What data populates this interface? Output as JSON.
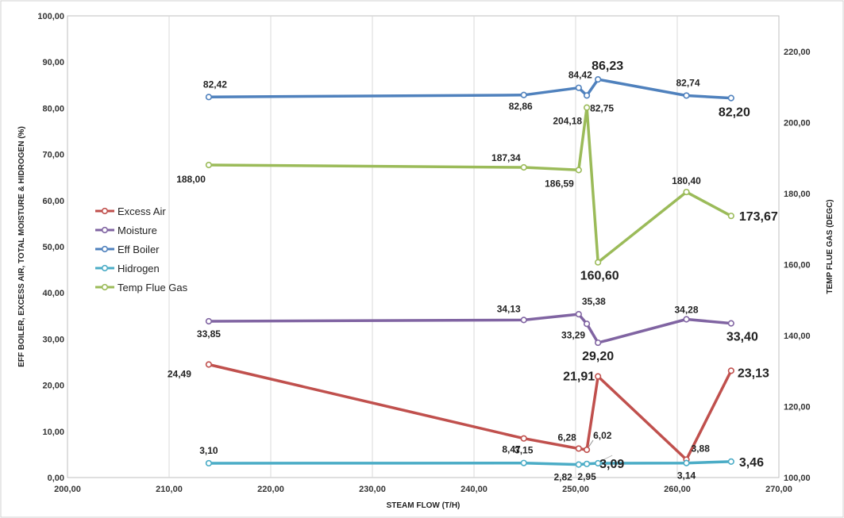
{
  "chart_data": {
    "type": "line",
    "xlabel": "STEAM FLOW (T/H)",
    "ylabel_left": "EFF BOILER, EXCESS AIR, TOTAL MOISTURE & HIDROGEN (%)",
    "ylabel_right": "TEMP FLUE GAS (DEGC)",
    "xlim": [
      200,
      270
    ],
    "ylim_left": [
      0,
      100
    ],
    "ylim_right": [
      100,
      230
    ],
    "x_ticks": [
      "200,00",
      "210,00",
      "220,00",
      "230,00",
      "240,00",
      "250,00",
      "260,00",
      "270,00"
    ],
    "y_left_ticks": [
      "0,00",
      "10,00",
      "20,00",
      "30,00",
      "40,00",
      "50,00",
      "60,00",
      "70,00",
      "80,00",
      "90,00",
      "100,00"
    ],
    "y_right_ticks": [
      "100,00",
      "120,00",
      "140,00",
      "160,00",
      "180,00",
      "200,00",
      "220,00"
    ],
    "grid": "vertical",
    "legend_position": "left",
    "series": [
      {
        "name": "Excess Air",
        "axis": "left",
        "color": "#c0504d",
        "x": [
          213.9,
          244.9,
          250.3,
          251.1,
          252.2,
          260.9,
          265.3
        ],
        "y": [
          24.49,
          8.47,
          6.28,
          6.02,
          21.91,
          3.88,
          23.13
        ],
        "labels": [
          "24,49",
          "8,47",
          "6,28",
          "6,02",
          "21,91",
          "3,88",
          "23,13"
        ]
      },
      {
        "name": "Moisture",
        "axis": "left",
        "color": "#8064a2",
        "x": [
          213.9,
          244.9,
          250.3,
          251.1,
          252.2,
          260.9,
          265.3
        ],
        "y": [
          33.85,
          34.13,
          35.38,
          33.29,
          29.2,
          34.28,
          33.4
        ],
        "labels": [
          "33,85",
          "34,13",
          "35,38",
          "33,29",
          "29,20",
          "34,28",
          "33,40"
        ]
      },
      {
        "name": "Eff Boiler",
        "axis": "left",
        "color": "#4f81bd",
        "x": [
          213.9,
          244.9,
          250.3,
          251.1,
          252.2,
          260.9,
          265.3
        ],
        "y": [
          82.42,
          82.86,
          84.42,
          82.75,
          86.23,
          82.74,
          82.2
        ],
        "labels": [
          "82,42",
          "82,86",
          "84,42",
          "82,75",
          "86,23",
          "82,74",
          "82,20"
        ]
      },
      {
        "name": "Hidrogen",
        "axis": "left",
        "color": "#4bacc6",
        "x": [
          213.9,
          244.9,
          250.3,
          251.1,
          252.2,
          260.9,
          265.3
        ],
        "y": [
          3.1,
          3.15,
          2.82,
          2.95,
          3.09,
          3.14,
          3.46
        ],
        "labels": [
          "3,10",
          "3,15",
          "2,82",
          "2,95",
          "3,09",
          "3,14",
          "3,46"
        ]
      },
      {
        "name": "Temp Flue Gas",
        "axis": "right",
        "color": "#9bbb59",
        "x": [
          213.9,
          244.9,
          250.3,
          251.1,
          252.2,
          260.9,
          265.3
        ],
        "y": [
          188.0,
          187.34,
          186.59,
          204.18,
          160.6,
          180.4,
          173.67
        ],
        "labels": [
          "188,00",
          "187,34",
          "186,59",
          "204,18",
          "160,60",
          "180,40",
          "173,67"
        ]
      }
    ]
  },
  "colors": {
    "highlight_red": "#ff0000",
    "highlight_green": "#00b050",
    "grid": "#d9d9d9"
  }
}
